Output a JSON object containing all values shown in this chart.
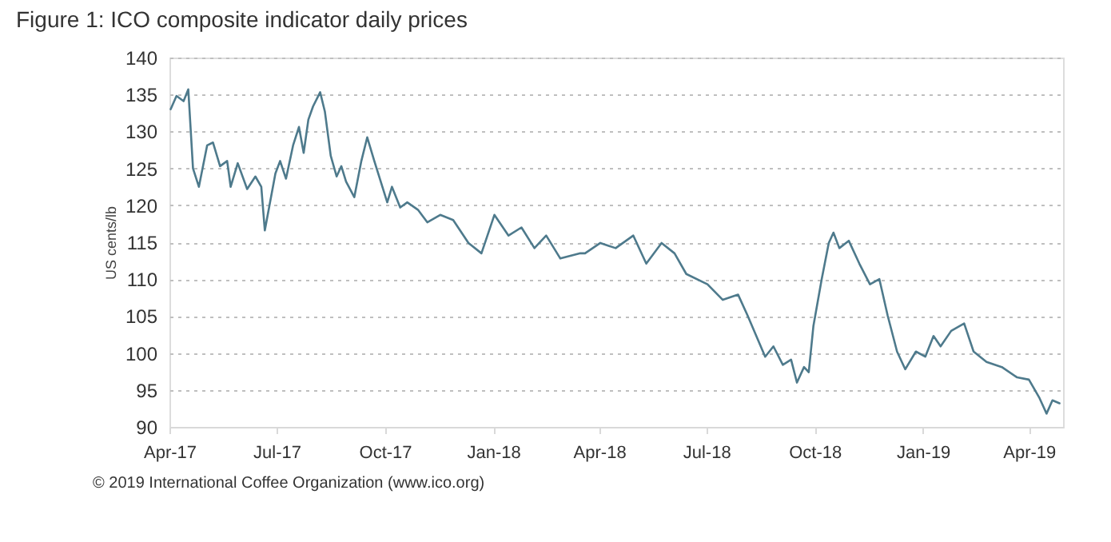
{
  "chart_data": {
    "type": "line",
    "title": "Figure 1: ICO composite indicator daily prices",
    "ylabel": "US cents/lb",
    "annotations": [
      "© 2019 International Coffee Organization (www.ico.org)"
    ],
    "x": [
      "2017-04-02",
      "2017-04-07",
      "2017-04-13",
      "2017-04-17",
      "2017-04-21",
      "2017-04-26",
      "2017-05-03",
      "2017-05-08",
      "2017-05-14",
      "2017-05-20",
      "2017-05-23",
      "2017-05-29",
      "2017-06-06",
      "2017-06-13",
      "2017-06-18",
      "2017-06-21",
      "2017-06-30",
      "2017-07-04",
      "2017-07-09",
      "2017-07-15",
      "2017-07-20",
      "2017-07-24",
      "2017-07-28",
      "2017-08-01",
      "2017-08-07",
      "2017-08-11",
      "2017-08-16",
      "2017-08-21",
      "2017-08-25",
      "2017-08-29",
      "2017-09-05",
      "2017-09-11",
      "2017-09-16",
      "2017-09-22",
      "2017-10-03",
      "2017-10-07",
      "2017-10-14",
      "2017-10-20",
      "2017-10-29",
      "2017-11-06",
      "2017-11-17",
      "2017-11-28",
      "2017-12-11",
      "2017-12-22",
      "2018-01-02",
      "2018-01-14",
      "2018-01-25",
      "2018-02-05",
      "2018-02-15",
      "2018-02-27",
      "2018-03-16",
      "2018-03-20",
      "2018-04-02",
      "2018-04-15",
      "2018-04-30",
      "2018-05-11",
      "2018-05-24",
      "2018-06-04",
      "2018-06-14",
      "2018-07-02",
      "2018-07-15",
      "2018-07-28",
      "2018-08-05",
      "2018-08-20",
      "2018-08-27",
      "2018-09-04",
      "2018-09-11",
      "2018-09-16",
      "2018-09-22",
      "2018-09-26",
      "2018-09-30",
      "2018-10-07",
      "2018-10-13",
      "2018-10-17",
      "2018-10-22",
      "2018-10-30",
      "2018-11-08",
      "2018-11-17",
      "2018-11-25",
      "2018-12-02",
      "2018-12-10",
      "2018-12-17",
      "2018-12-26",
      "2019-01-03",
      "2019-01-10",
      "2019-01-16",
      "2019-01-25",
      "2019-02-05",
      "2019-02-13",
      "2019-02-24",
      "2019-03-09",
      "2019-03-22",
      "2019-04-01",
      "2019-04-10",
      "2019-04-16",
      "2019-04-21",
      "2019-04-27"
    ],
    "series": [
      {
        "color": "#4e7a8c",
        "values": [
          133.0,
          134.8,
          134.1,
          135.7,
          125.0,
          122.5,
          128.1,
          128.5,
          125.3,
          126.0,
          122.5,
          125.7,
          122.2,
          123.9,
          122.5,
          116.6,
          124.3,
          126.0,
          123.6,
          128.1,
          130.6,
          127.1,
          131.6,
          133.4,
          135.3,
          132.7,
          126.7,
          123.9,
          125.3,
          123.2,
          121.1,
          126.0,
          129.2,
          126.0,
          120.4,
          122.5,
          119.7,
          120.4,
          119.4,
          117.7,
          118.7,
          118.0,
          114.9,
          113.5,
          118.7,
          115.9,
          117.0,
          114.2,
          115.9,
          112.8,
          113.5,
          113.5,
          114.9,
          114.2,
          115.9,
          112.1,
          114.9,
          113.5,
          110.7,
          109.3,
          107.2,
          107.9,
          105.1,
          99.5,
          100.9,
          98.4,
          99.1,
          96.0,
          98.1,
          97.4,
          103.7,
          110.0,
          114.9,
          116.3,
          114.2,
          115.2,
          112.1,
          109.3,
          110.0,
          105.1,
          100.2,
          97.8,
          100.2,
          99.5,
          102.3,
          100.9,
          103.0,
          104.0,
          100.2,
          98.8,
          98.1,
          96.7,
          96.4,
          93.9,
          91.8,
          93.6,
          93.2
        ]
      }
    ],
    "xlim": [
      "2017-04-01",
      "2019-04-30"
    ],
    "xticks": [
      {
        "value": "2017-04-01",
        "label": "Apr-17"
      },
      {
        "value": "2017-07-01",
        "label": "Jul-17"
      },
      {
        "value": "2017-10-01",
        "label": "Oct-17"
      },
      {
        "value": "2018-01-01",
        "label": "Jan-18"
      },
      {
        "value": "2018-04-01",
        "label": "Apr-18"
      },
      {
        "value": "2018-07-01",
        "label": "Jul-18"
      },
      {
        "value": "2018-10-01",
        "label": "Oct-18"
      },
      {
        "value": "2019-01-01",
        "label": "Jan-19"
      },
      {
        "value": "2019-04-01",
        "label": "Apr-19"
      }
    ],
    "ylim": [
      90,
      140
    ],
    "yticks": [
      90,
      95,
      100,
      105,
      110,
      115,
      120,
      125,
      130,
      135,
      140
    ],
    "grid": "y",
    "line_style": "solid",
    "marker": "none"
  }
}
